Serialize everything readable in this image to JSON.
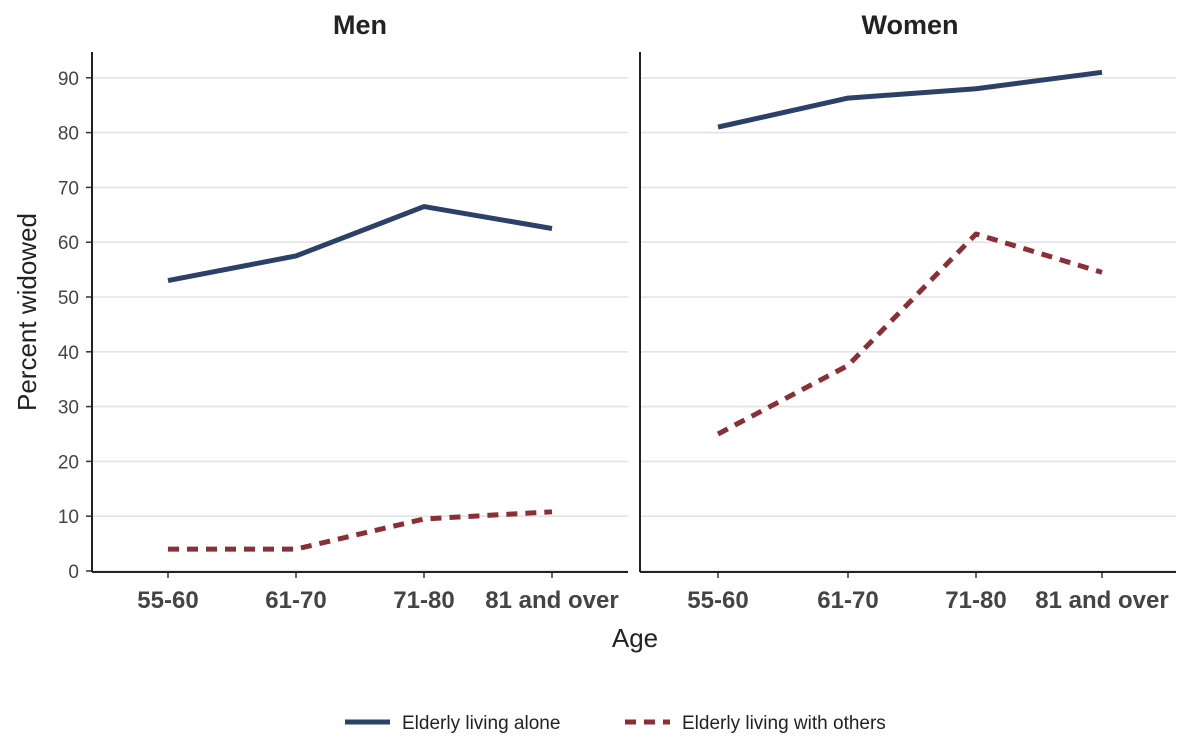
{
  "chart_data": {
    "type": "line",
    "xlabel": "Age",
    "ylabel": "Percent widowed",
    "ylim": [
      0,
      95
    ],
    "yticks": [
      0,
      10,
      20,
      30,
      40,
      50,
      60,
      70,
      80,
      90
    ],
    "grid": "horizontal",
    "legend_position": "bottom",
    "categories": [
      "55-60",
      "61-70",
      "71-80",
      "81 and over"
    ],
    "panels": [
      {
        "title": "Men",
        "series": [
          {
            "name": "Elderly living alone",
            "values": [
              53,
              57.5,
              66.5,
              62.5
            ]
          },
          {
            "name": "Elderly living with others",
            "values": [
              4,
              4,
              9.5,
              10.8
            ]
          }
        ]
      },
      {
        "title": "Women",
        "series": [
          {
            "name": "Elderly living alone",
            "values": [
              81,
              86.3,
              88,
              91
            ]
          },
          {
            "name": "Elderly living with others",
            "values": [
              25,
              37.5,
              61.5,
              54.5
            ]
          }
        ]
      }
    ],
    "legend": [
      {
        "name": "Elderly living alone",
        "color": "#2b4168",
        "dash": "solid"
      },
      {
        "name": "Elderly living with others",
        "color": "#8b2e36",
        "dash": "dashed"
      }
    ]
  }
}
